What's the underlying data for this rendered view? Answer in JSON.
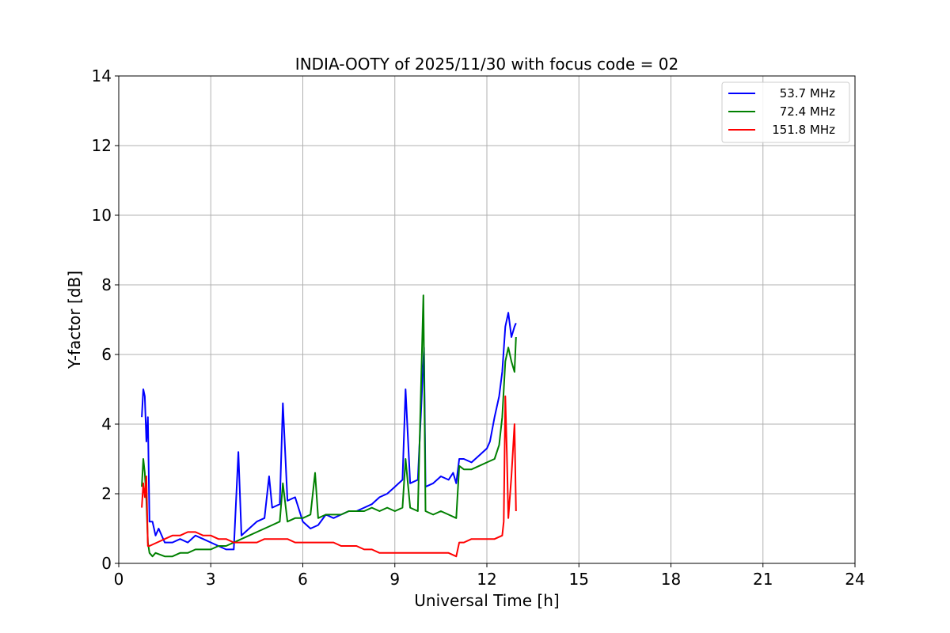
{
  "chart_data": {
    "type": "line",
    "title": "INDIA-OOTY of 2025/11/30 with focus code = 02",
    "xlabel": "Universal Time [h]",
    "ylabel": "Y-factor [dB]",
    "xlim": [
      0,
      24
    ],
    "ylim": [
      0,
      14
    ],
    "xticks": [
      0,
      3,
      6,
      9,
      12,
      15,
      18,
      21,
      24
    ],
    "yticks": [
      0,
      2,
      4,
      6,
      8,
      10,
      12,
      14
    ],
    "grid": true,
    "legend_position": "top-right",
    "series": [
      {
        "name": "53.7 MHz",
        "color": "#0000ff",
        "x": [
          0.75,
          0.8,
          0.85,
          0.9,
          0.95,
          1.0,
          1.1,
          1.2,
          1.3,
          1.5,
          1.75,
          2.0,
          2.25,
          2.5,
          2.75,
          3.0,
          3.25,
          3.5,
          3.75,
          3.9,
          4.0,
          4.25,
          4.5,
          4.75,
          4.9,
          5.0,
          5.25,
          5.35,
          5.5,
          5.75,
          6.0,
          6.25,
          6.5,
          6.75,
          7.0,
          7.25,
          7.5,
          7.75,
          8.0,
          8.25,
          8.5,
          8.75,
          9.0,
          9.25,
          9.35,
          9.5,
          9.75,
          9.95,
          10.0,
          10.25,
          10.5,
          10.75,
          10.9,
          11.0,
          11.1,
          11.25,
          11.5,
          11.75,
          12.0,
          12.1,
          12.25,
          12.4,
          12.5,
          12.6,
          12.7,
          12.8,
          12.9,
          12.95
        ],
        "y": [
          4.2,
          5.0,
          4.8,
          3.5,
          4.2,
          1.2,
          1.2,
          0.8,
          1.0,
          0.6,
          0.6,
          0.7,
          0.6,
          0.8,
          0.7,
          0.6,
          0.5,
          0.4,
          0.4,
          3.2,
          0.8,
          1.0,
          1.2,
          1.3,
          2.5,
          1.6,
          1.7,
          4.6,
          1.8,
          1.9,
          1.2,
          1.0,
          1.1,
          1.4,
          1.3,
          1.4,
          1.5,
          1.5,
          1.6,
          1.7,
          1.9,
          2.0,
          2.2,
          2.4,
          5.0,
          2.3,
          2.4,
          6.2,
          2.2,
          2.3,
          2.5,
          2.4,
          2.6,
          2.3,
          3.0,
          3.0,
          2.9,
          3.1,
          3.3,
          3.5,
          4.2,
          4.8,
          5.5,
          6.8,
          7.2,
          6.5,
          6.8,
          6.9
        ]
      },
      {
        "name": "72.4 MHz",
        "color": "#008000",
        "x": [
          0.75,
          0.8,
          0.85,
          0.9,
          0.95,
          1.0,
          1.1,
          1.2,
          1.5,
          1.75,
          2.0,
          2.25,
          2.5,
          2.75,
          3.0,
          3.25,
          3.5,
          3.75,
          4.0,
          4.25,
          4.5,
          4.75,
          5.0,
          5.25,
          5.35,
          5.5,
          5.75,
          6.0,
          6.25,
          6.4,
          6.5,
          6.75,
          7.0,
          7.25,
          7.5,
          7.75,
          8.0,
          8.25,
          8.5,
          8.75,
          9.0,
          9.25,
          9.35,
          9.5,
          9.75,
          9.93,
          10.0,
          10.25,
          10.5,
          10.75,
          11.0,
          11.1,
          11.25,
          11.5,
          11.75,
          12.0,
          12.25,
          12.4,
          12.5,
          12.6,
          12.7,
          12.8,
          12.9,
          12.95
        ],
        "y": [
          2.2,
          3.0,
          2.6,
          1.8,
          0.6,
          0.3,
          0.2,
          0.3,
          0.2,
          0.2,
          0.3,
          0.3,
          0.4,
          0.4,
          0.4,
          0.5,
          0.5,
          0.6,
          0.7,
          0.8,
          0.9,
          1.0,
          1.1,
          1.2,
          2.3,
          1.2,
          1.3,
          1.3,
          1.4,
          2.6,
          1.3,
          1.4,
          1.4,
          1.4,
          1.5,
          1.5,
          1.5,
          1.6,
          1.5,
          1.6,
          1.5,
          1.6,
          3.0,
          1.6,
          1.5,
          7.7,
          1.5,
          1.4,
          1.5,
          1.4,
          1.3,
          2.8,
          2.7,
          2.7,
          2.8,
          2.9,
          3.0,
          3.4,
          4.2,
          5.8,
          6.2,
          5.8,
          5.5,
          6.5
        ]
      },
      {
        "name": "151.8 MHz",
        "color": "#ff0000",
        "x": [
          0.75,
          0.8,
          0.85,
          0.9,
          0.95,
          1.0,
          1.25,
          1.5,
          1.75,
          2.0,
          2.25,
          2.5,
          2.75,
          3.0,
          3.25,
          3.5,
          3.75,
          4.0,
          4.25,
          4.5,
          4.75,
          5.0,
          5.25,
          5.5,
          5.75,
          6.0,
          6.25,
          6.5,
          6.75,
          7.0,
          7.25,
          7.5,
          7.75,
          8.0,
          8.25,
          8.5,
          8.75,
          9.0,
          9.25,
          9.5,
          9.75,
          10.0,
          10.25,
          10.5,
          10.75,
          11.0,
          11.1,
          11.25,
          11.5,
          11.75,
          12.0,
          12.25,
          12.5,
          12.55,
          12.6,
          12.65,
          12.7,
          12.8,
          12.9,
          12.95
        ],
        "y": [
          1.6,
          2.3,
          1.9,
          2.5,
          0.5,
          0.5,
          0.6,
          0.7,
          0.8,
          0.8,
          0.9,
          0.9,
          0.8,
          0.8,
          0.7,
          0.7,
          0.6,
          0.6,
          0.6,
          0.6,
          0.7,
          0.7,
          0.7,
          0.7,
          0.6,
          0.6,
          0.6,
          0.6,
          0.6,
          0.6,
          0.5,
          0.5,
          0.5,
          0.4,
          0.4,
          0.3,
          0.3,
          0.3,
          0.3,
          0.3,
          0.3,
          0.3,
          0.3,
          0.3,
          0.3,
          0.2,
          0.6,
          0.6,
          0.7,
          0.7,
          0.7,
          0.7,
          0.8,
          1.2,
          4.8,
          3.2,
          1.3,
          2.5,
          4.0,
          1.5
        ]
      }
    ]
  }
}
